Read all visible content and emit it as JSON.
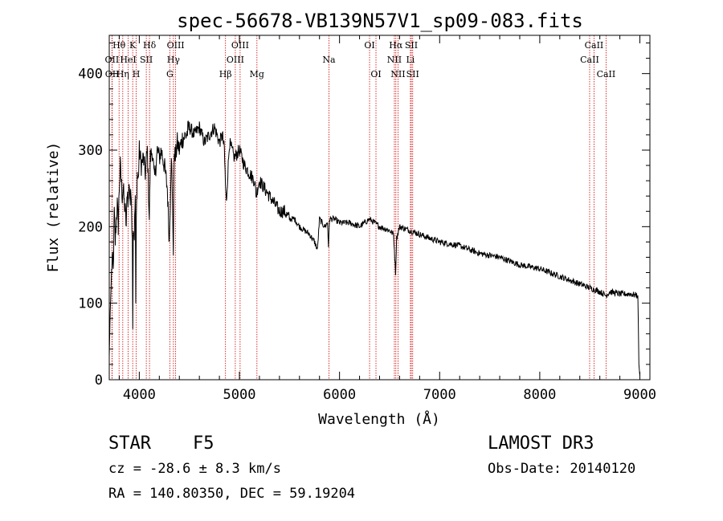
{
  "chart_data": {
    "type": "line",
    "title": "spec-56678-VB139N57V1_sp09-083.fits",
    "xlabel": "Wavelength (Å)",
    "ylabel": "Flux (relative)",
    "xlim": [
      3700,
      9100
    ],
    "ylim": [
      0,
      450
    ],
    "x_ticks": [
      4000,
      5000,
      6000,
      7000,
      8000,
      9000
    ],
    "y_ticks": [
      0,
      100,
      200,
      300,
      400
    ],
    "series": [
      {
        "name": "spectrum",
        "x": [
          3700,
          3710,
          3720,
          3730,
          3740,
          3750,
          3760,
          3770,
          3780,
          3790,
          3800,
          3810,
          3820,
          3830,
          3840,
          3850,
          3860,
          3870,
          3880,
          3890,
          3900,
          3910,
          3920,
          3930,
          3935,
          3940,
          3950,
          3960,
          3965,
          3970,
          3980,
          3990,
          4000,
          4020,
          4040,
          4060,
          4080,
          4100,
          4110,
          4130,
          4150,
          4180,
          4200,
          4220,
          4250,
          4280,
          4300,
          4320,
          4340,
          4350,
          4360,
          4380,
          4400,
          4430,
          4470,
          4500,
          4550,
          4600,
          4650,
          4700,
          4750,
          4800,
          4830,
          4850,
          4860,
          4870,
          4880,
          4900,
          4950,
          5000,
          5050,
          5100,
          5150,
          5170,
          5180,
          5200,
          5250,
          5300,
          5350,
          5400,
          5450,
          5500,
          5550,
          5600,
          5650,
          5700,
          5750,
          5780,
          5800,
          5850,
          5880,
          5890,
          5900,
          5950,
          6000,
          6100,
          6200,
          6300,
          6400,
          6500,
          6540,
          6560,
          6570,
          6600,
          6700,
          6800,
          7000,
          7200,
          7400,
          7600,
          7800,
          8000,
          8200,
          8400,
          8500,
          8540,
          8600,
          8660,
          8700,
          8800,
          8900,
          8980,
          8990,
          9000
        ],
        "values": [
          30,
          90,
          130,
          160,
          140,
          220,
          180,
          210,
          230,
          200,
          250,
          280,
          260,
          240,
          250,
          230,
          220,
          200,
          250,
          230,
          260,
          230,
          250,
          180,
          80,
          200,
          190,
          240,
          90,
          210,
          270,
          260,
          300,
          280,
          290,
          270,
          300,
          210,
          290,
          300,
          260,
          300,
          290,
          300,
          280,
          250,
          180,
          300,
          170,
          300,
          290,
          310,
          300,
          315,
          320,
          330,
          320,
          330,
          310,
          320,
          330,
          310,
          320,
          300,
          255,
          230,
          260,
          310,
          290,
          300,
          280,
          270,
          260,
          240,
          250,
          260,
          250,
          240,
          230,
          220,
          220,
          210,
          210,
          200,
          195,
          190,
          180,
          170,
          210,
          200,
          205,
          175,
          210,
          210,
          205,
          205,
          200,
          210,
          200,
          195,
          190,
          140,
          185,
          200,
          195,
          190,
          180,
          175,
          165,
          160,
          150,
          145,
          135,
          125,
          120,
          118,
          115,
          110,
          115,
          112,
          112,
          110,
          20,
          5
        ]
      }
    ],
    "spectral_lines": [
      {
        "label": "Hθ",
        "wavelength": 3798,
        "row": 0
      },
      {
        "label": "OII",
        "wavelength": 3727,
        "row": 1
      },
      {
        "label": "OII",
        "wavelength": 3729,
        "row": 2
      },
      {
        "label": "K",
        "wavelength": 3934,
        "row": 0
      },
      {
        "label": "HeI",
        "wavelength": 3889,
        "row": 1
      },
      {
        "label": "Hη",
        "wavelength": 3835,
        "row": 2
      },
      {
        "label": "SII",
        "wavelength": 4070,
        "row": 1
      },
      {
        "label": "H",
        "wavelength": 3969,
        "row": 2
      },
      {
        "label": "Hδ",
        "wavelength": 4102,
        "row": 0
      },
      {
        "label": "OIII",
        "wavelength": 4363,
        "row": 0
      },
      {
        "label": "Hγ",
        "wavelength": 4341,
        "row": 1
      },
      {
        "label": "G",
        "wavelength": 4305,
        "row": 2
      },
      {
        "label": "OIII",
        "wavelength": 5007,
        "row": 0
      },
      {
        "label": "OIII",
        "wavelength": 4959,
        "row": 1
      },
      {
        "label": "Hβ",
        "wavelength": 4861,
        "row": 2
      },
      {
        "label": "Mg",
        "wavelength": 5175,
        "row": 2
      },
      {
        "label": "Na",
        "wavelength": 5894,
        "row": 1
      },
      {
        "label": "OI",
        "wavelength": 6300,
        "row": 0
      },
      {
        "label": "OI",
        "wavelength": 6364,
        "row": 2
      },
      {
        "label": "Hα",
        "wavelength": 6563,
        "row": 0
      },
      {
        "label": "NII",
        "wavelength": 6548,
        "row": 1
      },
      {
        "label": "NII",
        "wavelength": 6584,
        "row": 2
      },
      {
        "label": "SII",
        "wavelength": 6717,
        "row": 0
      },
      {
        "label": "Li",
        "wavelength": 6708,
        "row": 1
      },
      {
        "label": "SII",
        "wavelength": 6731,
        "row": 2
      },
      {
        "label": "CaII",
        "wavelength": 8542,
        "row": 0
      },
      {
        "label": "CaII",
        "wavelength": 8498,
        "row": 1
      },
      {
        "label": "CaII",
        "wavelength": 8662,
        "row": 2
      }
    ]
  },
  "info": {
    "class": "STAR",
    "subclass": "F5",
    "survey": "LAMOST DR3",
    "cz": "cz = -28.6 ± 8.3 km/s",
    "obs_date": "Obs-Date: 20140120",
    "radec": "RA = 140.80350, DEC =  59.19204"
  },
  "colors": {
    "axes": "#000000",
    "spectrum": "#000000",
    "lines": "#cc0000"
  }
}
